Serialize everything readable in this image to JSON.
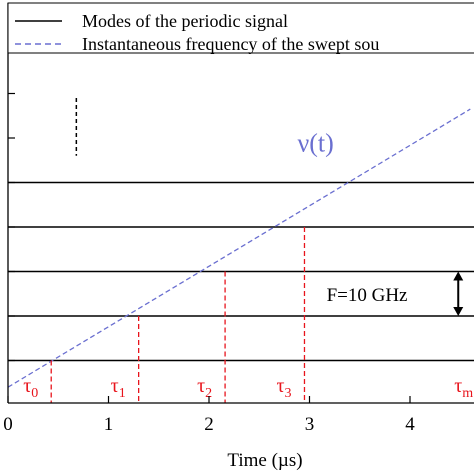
{
  "chart_data": {
    "type": "line",
    "title": "",
    "xlabel": "Time (µs)",
    "ylabel": "",
    "xlim": [
      0,
      4.6
    ],
    "ylim": [
      0,
      9
    ],
    "x_ticks": [
      0,
      1,
      2,
      3,
      4
    ],
    "y_ticks": [
      1,
      2,
      3,
      4,
      5,
      6,
      7,
      8
    ],
    "legend": {
      "placement": "top-left",
      "entries": [
        {
          "label": "Modes of the periodic signal",
          "style": "solid",
          "color": "#000000"
        },
        {
          "label": "Instantaneous frequency of the swept sou",
          "style": "dashed",
          "color": "#6a6fd0"
        }
      ]
    },
    "series": [
      {
        "name": "Modes of the periodic signal",
        "kind": "horizontal-lines",
        "color": "#000000",
        "y_values": [
          1,
          2,
          3,
          4,
          5
        ]
      },
      {
        "name": "Instantaneous frequency of the swept sou",
        "kind": "dashed-line",
        "color": "#6a6fd0",
        "x": [
          0,
          4.6
        ],
        "y": [
          0.4,
          6.65
        ]
      }
    ],
    "crossing_markers": {
      "color": "#e8141c",
      "points": [
        {
          "label": "τ",
          "sub": "0",
          "x": 0.43,
          "y": 1
        },
        {
          "label": "τ",
          "sub": "1",
          "x": 1.3,
          "y": 2
        },
        {
          "label": "τ",
          "sub": "2",
          "x": 2.16,
          "y": 3
        },
        {
          "label": "τ",
          "sub": "3",
          "x": 2.95,
          "y": 4
        },
        {
          "label": "τ",
          "sub": "m",
          "x": 4.5,
          "y": null
        }
      ]
    },
    "annotations": {
      "curve_label": {
        "text": "ν(t)",
        "color": "#6a6fd0"
      },
      "spacing_label": {
        "text": "F=10 GHz",
        "from": 2,
        "to": 3
      },
      "dotted_marker": {
        "x": 0.68,
        "y_from": 5.6,
        "y_to": 6.9
      }
    },
    "grid": false
  }
}
